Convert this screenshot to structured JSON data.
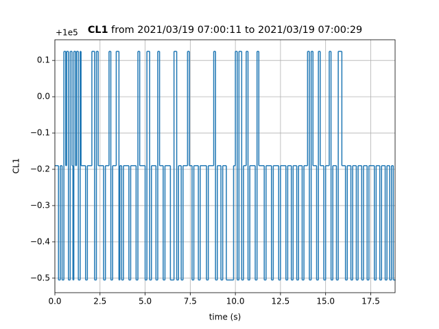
{
  "chart_data": {
    "type": "line",
    "drawstyle": "steps-post",
    "title_bold": "CL1",
    "title": "from 2021/03/19 07:00:11 to 2021/03/19 07:00:29",
    "x_label": "time (s)",
    "y_label": "CL1",
    "y_offset_text": "+1e5",
    "xlim": [
      0,
      18.85
    ],
    "ylim": [
      -0.54,
      0.157
    ],
    "grid": true,
    "xticks": [
      {
        "value": 0,
        "label": "0.0"
      },
      2.5,
      {
        "value": 5,
        "label": "5.0"
      },
      7.5,
      {
        "value": 10,
        "label": "10.0"
      },
      12.5,
      {
        "value": 15,
        "label": "15.0"
      },
      17.5
    ],
    "yticks": [
      {
        "value": -0.5,
        "label": "−0.5"
      },
      {
        "value": -0.4,
        "label": "−0.4"
      },
      {
        "value": -0.3,
        "label": "−0.3"
      },
      {
        "value": -0.2,
        "label": "−0.2"
      },
      {
        "value": -0.1,
        "label": "−0.1"
      },
      {
        "value": 0,
        "label": "0.0"
      },
      0.1
    ],
    "x": [
      0,
      0.2,
      0.3,
      0.4,
      0.5,
      0.6,
      0.65,
      0.75,
      0.85,
      0.95,
      1.0,
      1.05,
      1.15,
      1.2,
      1.3,
      1.4,
      1.45,
      1.7,
      1.8,
      2.05,
      2.2,
      2.3,
      2.4,
      2.7,
      2.8,
      3.0,
      3.1,
      3.2,
      3.4,
      3.55,
      3.6,
      3.7,
      3.8,
      4.1,
      4.2,
      4.5,
      4.6,
      4.7,
      5.0,
      5.1,
      5.25,
      5.35,
      5.6,
      5.7,
      5.8,
      6.0,
      6.1,
      6.4,
      6.6,
      6.75,
      6.85,
      7.0,
      7.1,
      7.35,
      7.45,
      7.6,
      7.7,
      7.95,
      8.05,
      8.4,
      8.5,
      8.8,
      8.9,
      9.0,
      9.2,
      9.3,
      9.5,
      9.9,
      10.0,
      10.1,
      10.2,
      10.35,
      10.45,
      10.6,
      10.7,
      10.8,
      11.1,
      11.2,
      11.3,
      11.6,
      11.7,
      12.0,
      12.1,
      12.4,
      12.5,
      12.8,
      12.9,
      13.1,
      13.2,
      13.4,
      13.5,
      13.7,
      13.8,
      14.0,
      14.1,
      14.2,
      14.3,
      14.5,
      14.6,
      14.7,
      14.9,
      15.0,
      15.2,
      15.3,
      15.4,
      15.6,
      15.7,
      15.9,
      16.1,
      16.2,
      16.4,
      16.5,
      16.7,
      16.8,
      17.0,
      17.1,
      17.3,
      17.4,
      17.7,
      17.8,
      18.0,
      18.1,
      18.3,
      18.4,
      18.55,
      18.65,
      18.75,
      18.85
    ],
    "series": [
      {
        "name": "CL1",
        "color": "#1f77b4",
        "values": [
          -0.19,
          -0.505,
          -0.19,
          -0.505,
          0.125,
          -0.19,
          0.125,
          -0.505,
          0.125,
          -0.19,
          -0.505,
          0.125,
          -0.19,
          0.125,
          -0.505,
          0.125,
          -0.19,
          -0.505,
          -0.19,
          0.125,
          -0.505,
          0.125,
          -0.19,
          -0.505,
          -0.19,
          0.125,
          -0.505,
          -0.19,
          0.125,
          -0.505,
          -0.19,
          -0.505,
          -0.19,
          -0.505,
          -0.19,
          -0.505,
          0.125,
          -0.19,
          -0.505,
          0.125,
          -0.505,
          -0.19,
          -0.505,
          0.125,
          -0.19,
          -0.505,
          -0.19,
          -0.505,
          0.125,
          -0.505,
          -0.19,
          -0.505,
          -0.19,
          0.125,
          -0.19,
          -0.505,
          -0.19,
          -0.505,
          -0.19,
          -0.505,
          -0.19,
          0.125,
          -0.505,
          -0.19,
          -0.505,
          -0.19,
          -0.505,
          -0.19,
          0.125,
          -0.505,
          0.125,
          -0.505,
          -0.19,
          0.125,
          -0.505,
          -0.19,
          -0.505,
          0.125,
          -0.19,
          -0.505,
          -0.19,
          -0.505,
          -0.19,
          -0.505,
          -0.19,
          -0.505,
          -0.19,
          -0.505,
          -0.19,
          -0.505,
          -0.19,
          -0.505,
          -0.19,
          0.125,
          -0.505,
          0.125,
          -0.19,
          -0.505,
          0.125,
          -0.19,
          -0.505,
          -0.19,
          0.125,
          -0.505,
          -0.19,
          -0.505,
          0.125,
          -0.19,
          -0.505,
          -0.19,
          -0.505,
          -0.19,
          -0.505,
          -0.19,
          -0.505,
          -0.19,
          -0.505,
          -0.19,
          -0.505,
          -0.19,
          -0.505,
          -0.19,
          -0.505,
          -0.19,
          -0.505,
          -0.19,
          -0.505,
          -0.505
        ]
      }
    ]
  }
}
